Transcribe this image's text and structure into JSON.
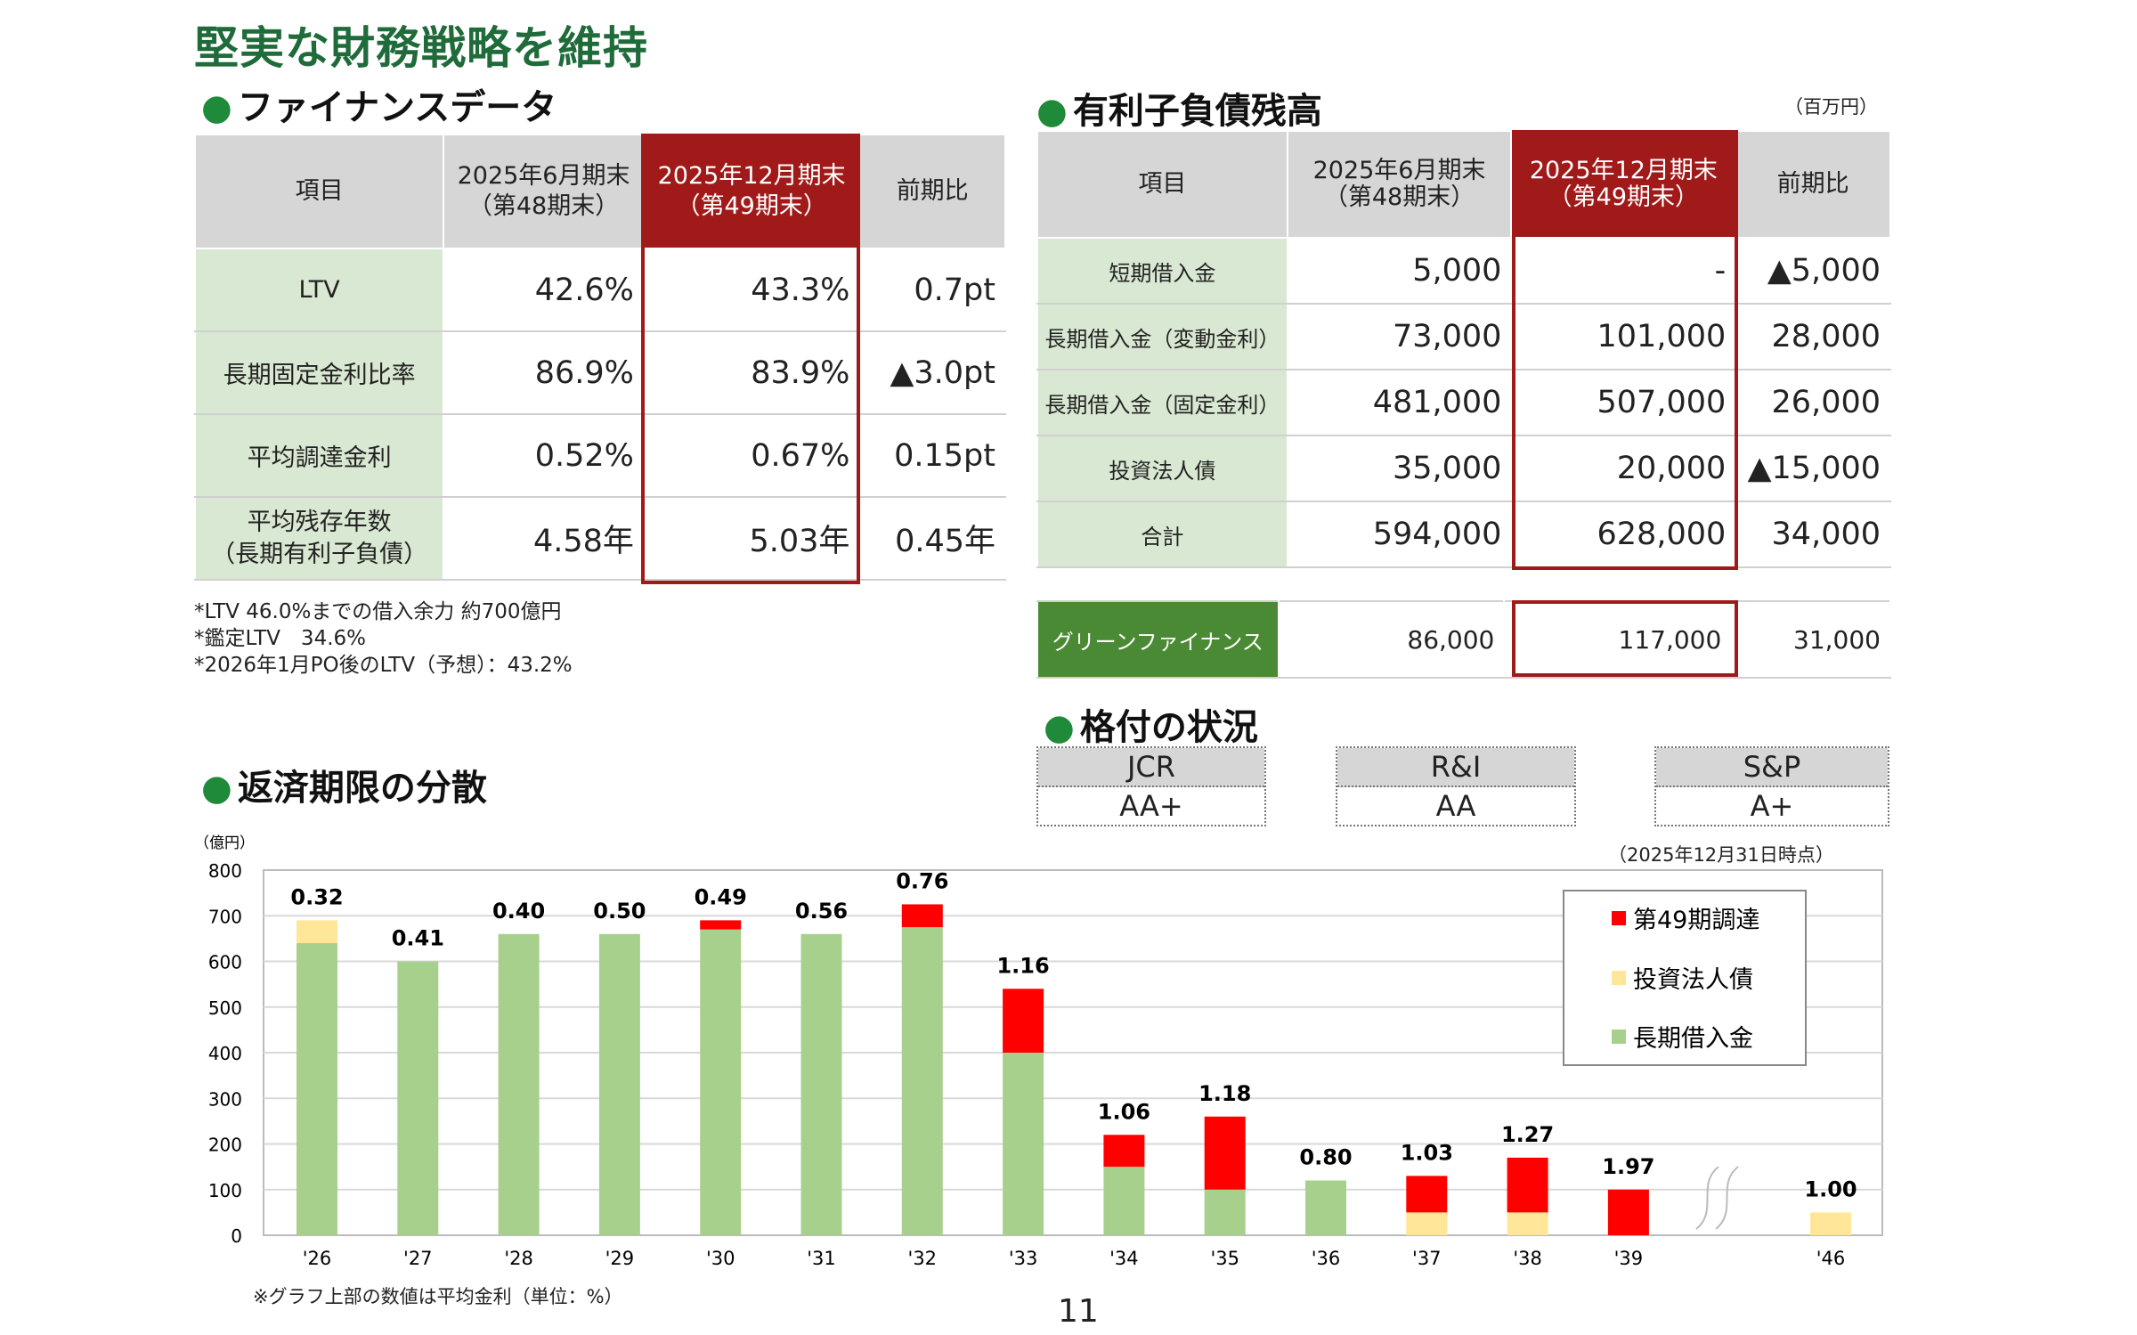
{
  "title": "堅実な財務戦略を維持",
  "finance": {
    "heading": "ファイナンスデータ",
    "headers": [
      "項目",
      "2025年6月期末\n（第48期末）",
      "2025年12月期末\n（第49期末）",
      "前期比"
    ],
    "rows": [
      {
        "label": "LTV",
        "prev": "42.6%",
        "curr": "43.3%",
        "diff": "0.7pt"
      },
      {
        "label": "長期固定金利比率",
        "prev": "86.9%",
        "curr": "83.9%",
        "diff": "▲3.0pt"
      },
      {
        "label": "平均調達金利",
        "prev": "0.52%",
        "curr": "0.67%",
        "diff": "0.15pt"
      },
      {
        "label": "平均残存年数\n（長期有利子負債）",
        "prev": "4.58年",
        "curr": "5.03年",
        "diff": "0.45年"
      }
    ],
    "notes": [
      "*LTV 46.0%までの借入余力 約700億円",
      "*鑑定LTV　34.6%",
      "*2026年1月PO後のLTV（予想）：43.2%"
    ]
  },
  "debt": {
    "heading": "有利子負債残高",
    "unit": "（百万円）",
    "headers": [
      "項目",
      "2025年6月期末\n（第48期末）",
      "2025年12月期末\n（第49期末）",
      "前期比"
    ],
    "rows": [
      {
        "label": "短期借入金",
        "prev": "5,000",
        "curr": "-",
        "diff": "▲5,000"
      },
      {
        "label": "長期借入金（変動金利）",
        "prev": "73,000",
        "curr": "101,000",
        "diff": "28,000"
      },
      {
        "label": "長期借入金（固定金利）",
        "prev": "481,000",
        "curr": "507,000",
        "diff": "26,000"
      },
      {
        "label": "投資法人債",
        "prev": "35,000",
        "curr": "20,000",
        "diff": "▲15,000"
      },
      {
        "label": "合計",
        "prev": "594,000",
        "curr": "628,000",
        "diff": "34,000"
      }
    ],
    "green": {
      "label": "グリーンファイナンス",
      "prev": "86,000",
      "curr": "117,000",
      "diff": "31,000"
    }
  },
  "rating": {
    "heading": "格付の状況",
    "items": [
      {
        "agency": "JCR",
        "grade": "AA+"
      },
      {
        "agency": "R&I",
        "grade": "AA"
      },
      {
        "agency": "S&P",
        "grade": "A+"
      }
    ]
  },
  "maturity": {
    "heading": "返済期限の分散",
    "asof": "（2025年12月31日時点）",
    "footnote": "※グラフ上部の数値は平均金利（単位：%）"
  },
  "page_number": "11",
  "colors": {
    "long_term": "#a8d08d",
    "bonds": "#ffe699",
    "new": "#ff0000",
    "accent": "#a01a1a"
  },
  "chart_data": {
    "type": "bar",
    "stacked": true,
    "ylabel": "（億円）",
    "ylim": [
      0,
      800
    ],
    "yticks": [
      0,
      100,
      200,
      300,
      400,
      500,
      600,
      700,
      800
    ],
    "categories": [
      "'26",
      "'27",
      "'28",
      "'29",
      "'30",
      "'31",
      "'32",
      "'33",
      "'34",
      "'35",
      "'36",
      "'37",
      "'38",
      "'39",
      "'46"
    ],
    "series": [
      {
        "name": "長期借入金",
        "color": "#a8d08d",
        "values": [
          640,
          600,
          660,
          660,
          670,
          660,
          675,
          400,
          150,
          100,
          120,
          0,
          0,
          0,
          0
        ]
      },
      {
        "name": "投資法人債",
        "color": "#ffe699",
        "values": [
          50,
          0,
          0,
          0,
          0,
          0,
          0,
          0,
          0,
          0,
          0,
          50,
          50,
          0,
          50
        ]
      },
      {
        "name": "第49期調達",
        "color": "#ff0000",
        "values": [
          0,
          0,
          0,
          0,
          20,
          0,
          50,
          140,
          70,
          160,
          0,
          80,
          120,
          100,
          0
        ]
      }
    ],
    "rate_labels": [
      "0.32",
      "0.41",
      "0.40",
      "0.50",
      "0.49",
      "0.56",
      "0.76",
      "1.16",
      "1.06",
      "1.18",
      "0.80",
      "1.03",
      "1.27",
      "1.97",
      "1.00"
    ],
    "legend": [
      "第49期調達",
      "投資法人債",
      "長期借入金"
    ],
    "legend_position": "top-right",
    "grid": true
  }
}
